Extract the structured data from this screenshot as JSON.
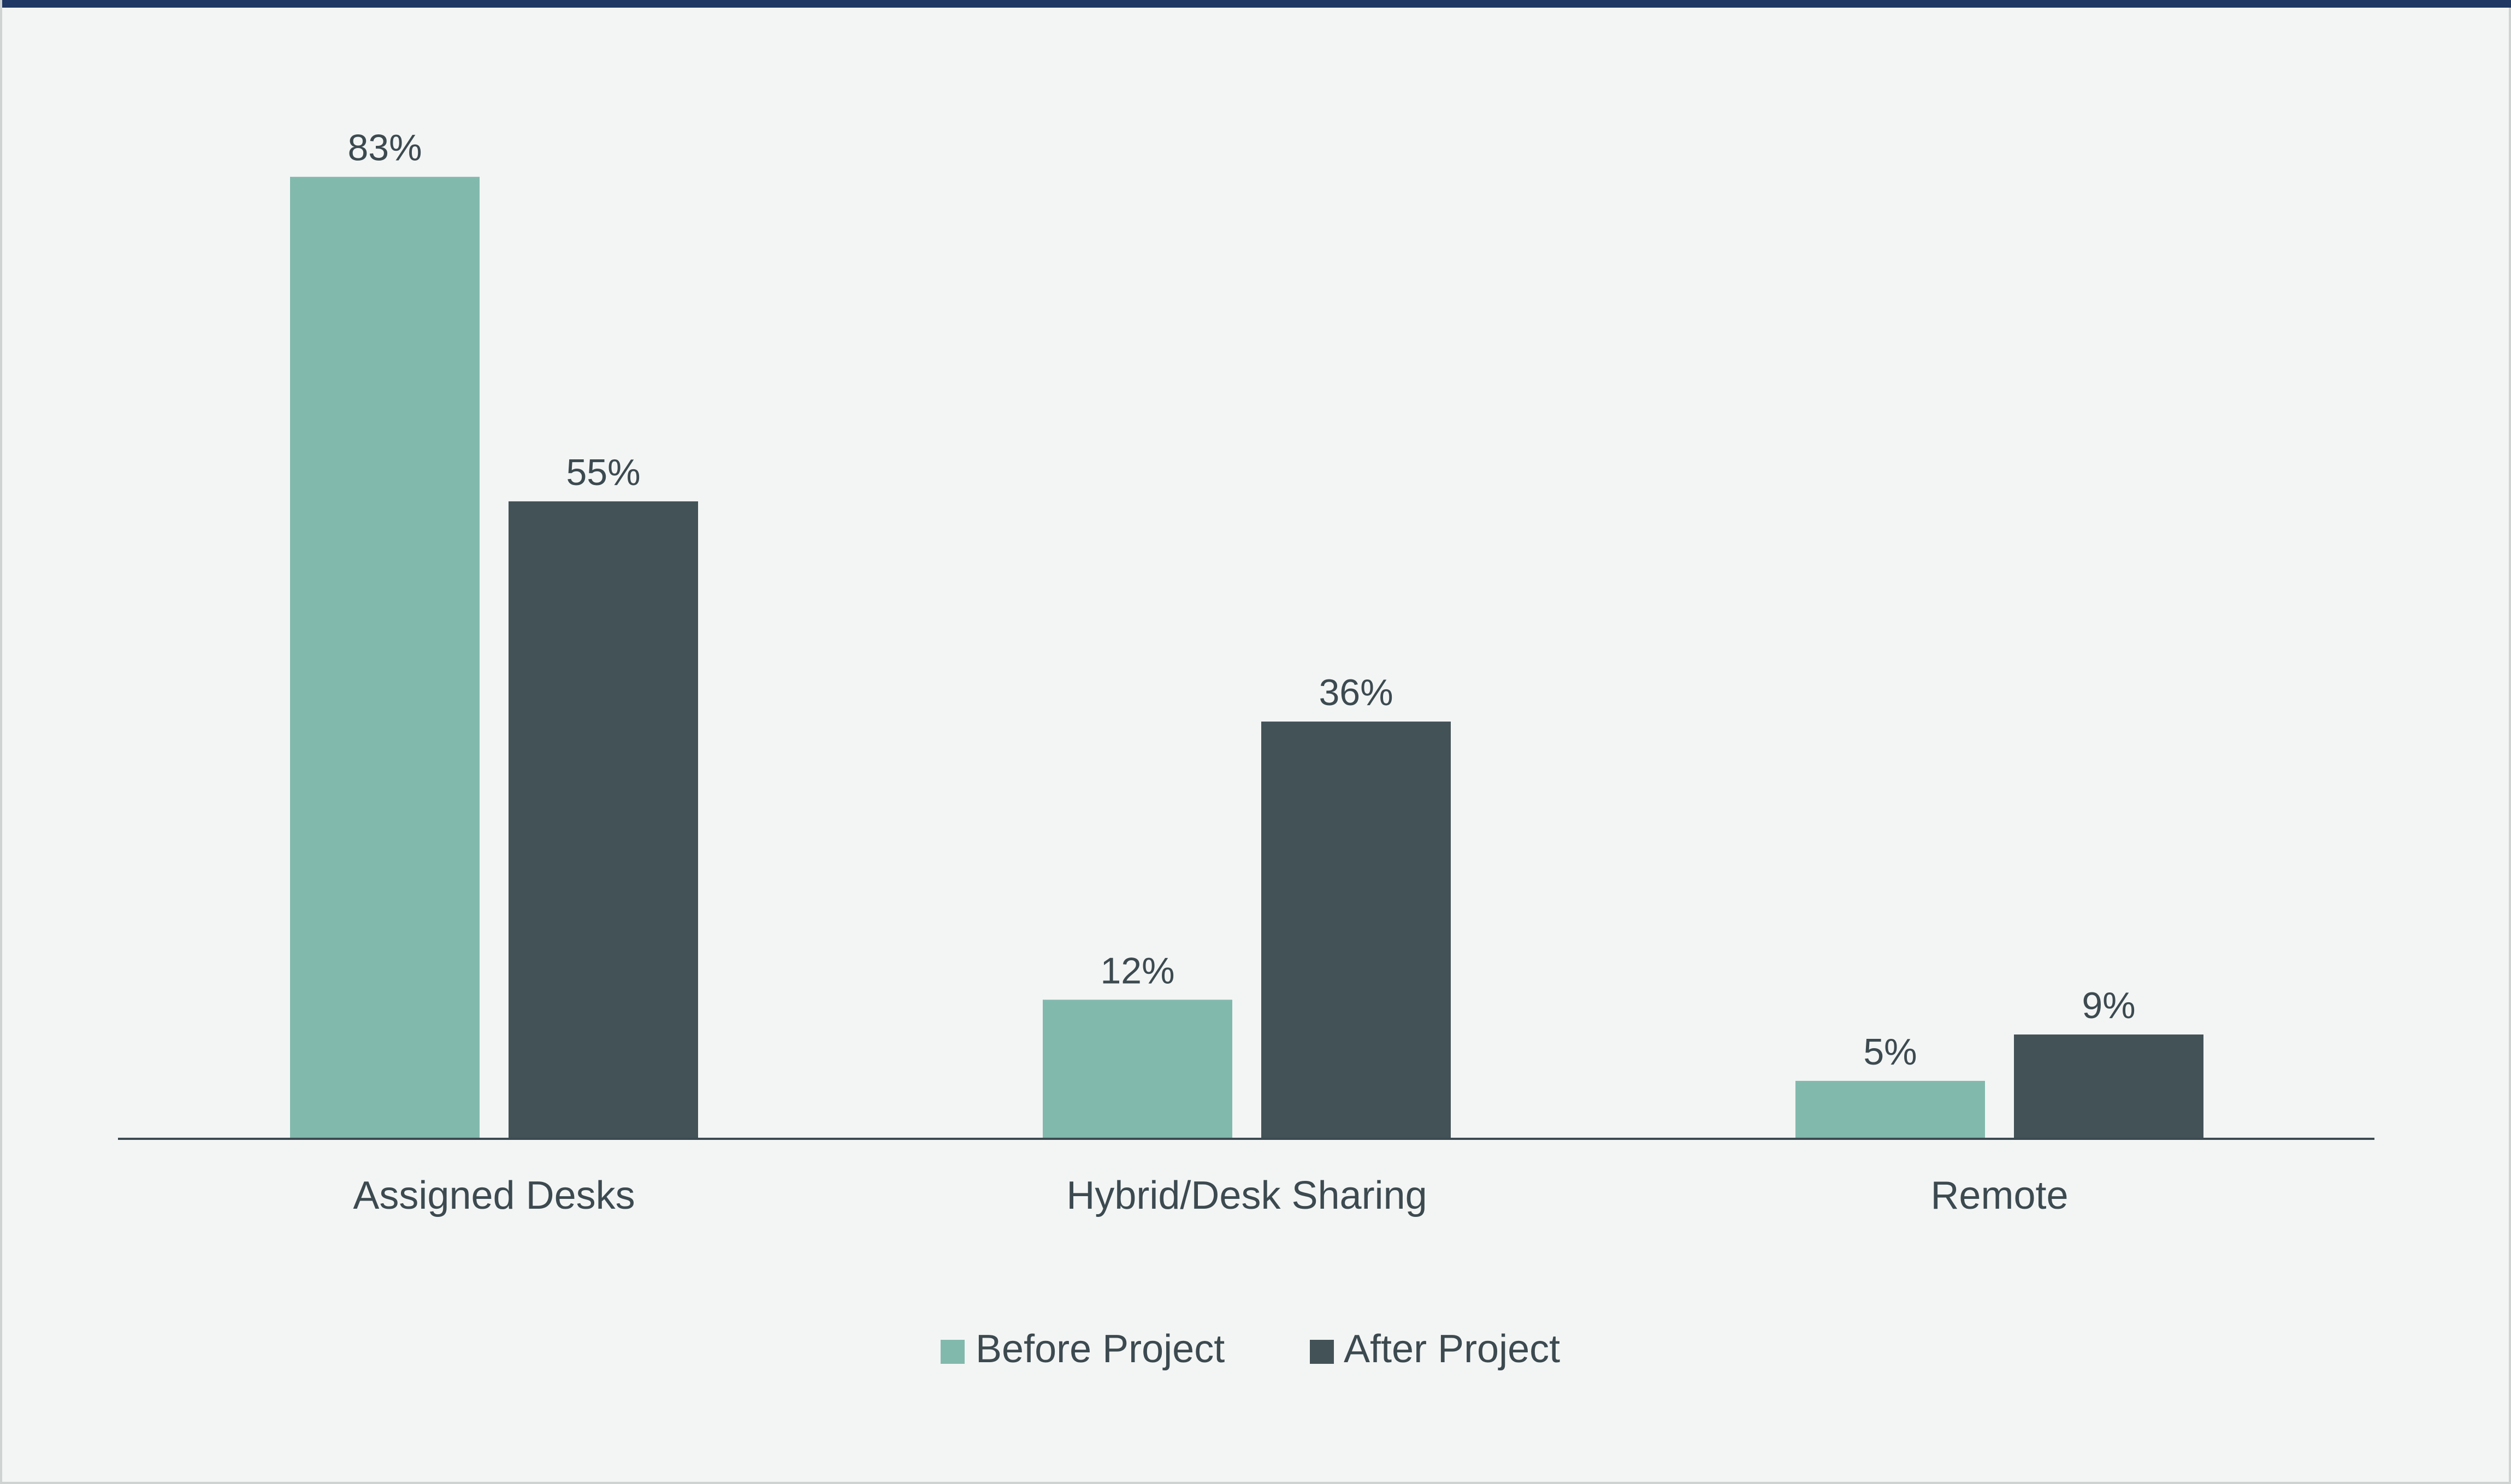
{
  "colors": {
    "background": "#f3f5f4",
    "top_rule": "#1f3864",
    "before": "#82b9ad",
    "after": "#435257",
    "text": "#3c4a50",
    "axis": "#3c4a50"
  },
  "chart_data": {
    "type": "bar",
    "categories": [
      "Assigned Desks",
      "Hybrid/Desk Sharing",
      "Remote"
    ],
    "series": [
      {
        "name": "Before Project",
        "values": [
          83,
          12,
          5
        ],
        "labels": [
          "83%",
          "12%",
          "5%"
        ]
      },
      {
        "name": "After Project",
        "values": [
          55,
          36,
          9
        ],
        "labels": [
          "55%",
          "36%",
          "9%"
        ]
      }
    ],
    "ylim": [
      0,
      100
    ],
    "grid": false,
    "legend_position": "bottom-center"
  }
}
